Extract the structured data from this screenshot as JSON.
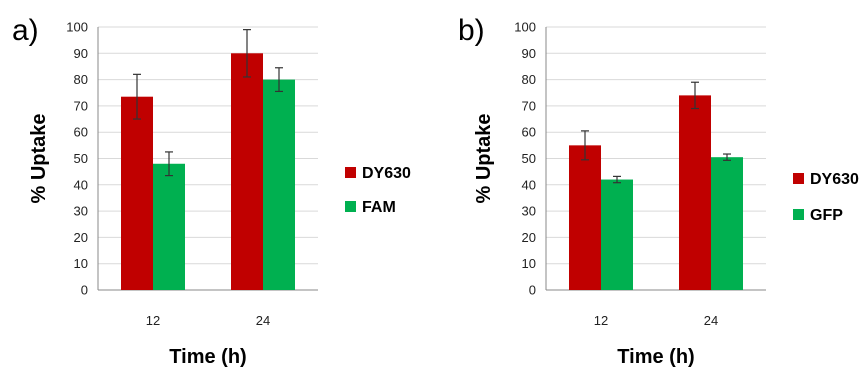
{
  "chart_data": [
    {
      "type": "bar",
      "panel_label": "a)",
      "categories": [
        "12",
        "24"
      ],
      "series": [
        {
          "name": "DY630",
          "color": "#c00000",
          "values": [
            73.5,
            90
          ],
          "errors": [
            8.5,
            9
          ]
        },
        {
          "name": "FAM",
          "color": "#00b050",
          "values": [
            48,
            80
          ],
          "errors": [
            4.5,
            4.5
          ]
        }
      ],
      "xlabel": "Time (h)",
      "ylabel": "% Uptake",
      "ylim": [
        0,
        100
      ],
      "yticks": [
        0,
        10,
        20,
        30,
        40,
        50,
        60,
        70,
        80,
        90,
        100
      ],
      "grid": true,
      "legend_position": "right"
    },
    {
      "type": "bar",
      "panel_label": "b)",
      "categories": [
        "12",
        "24"
      ],
      "series": [
        {
          "name": "DY630",
          "color": "#c00000",
          "values": [
            55,
            74
          ],
          "errors": [
            5.5,
            5
          ]
        },
        {
          "name": "GFP",
          "color": "#00b050",
          "values": [
            42,
            50.5
          ],
          "errors": [
            1.2,
            1.2
          ]
        }
      ],
      "xlabel": "Time (h)",
      "ylabel": "% Uptake",
      "ylim": [
        0,
        100
      ],
      "yticks": [
        0,
        10,
        20,
        30,
        40,
        50,
        60,
        70,
        80,
        90,
        100
      ],
      "grid": true,
      "legend_position": "right"
    }
  ]
}
